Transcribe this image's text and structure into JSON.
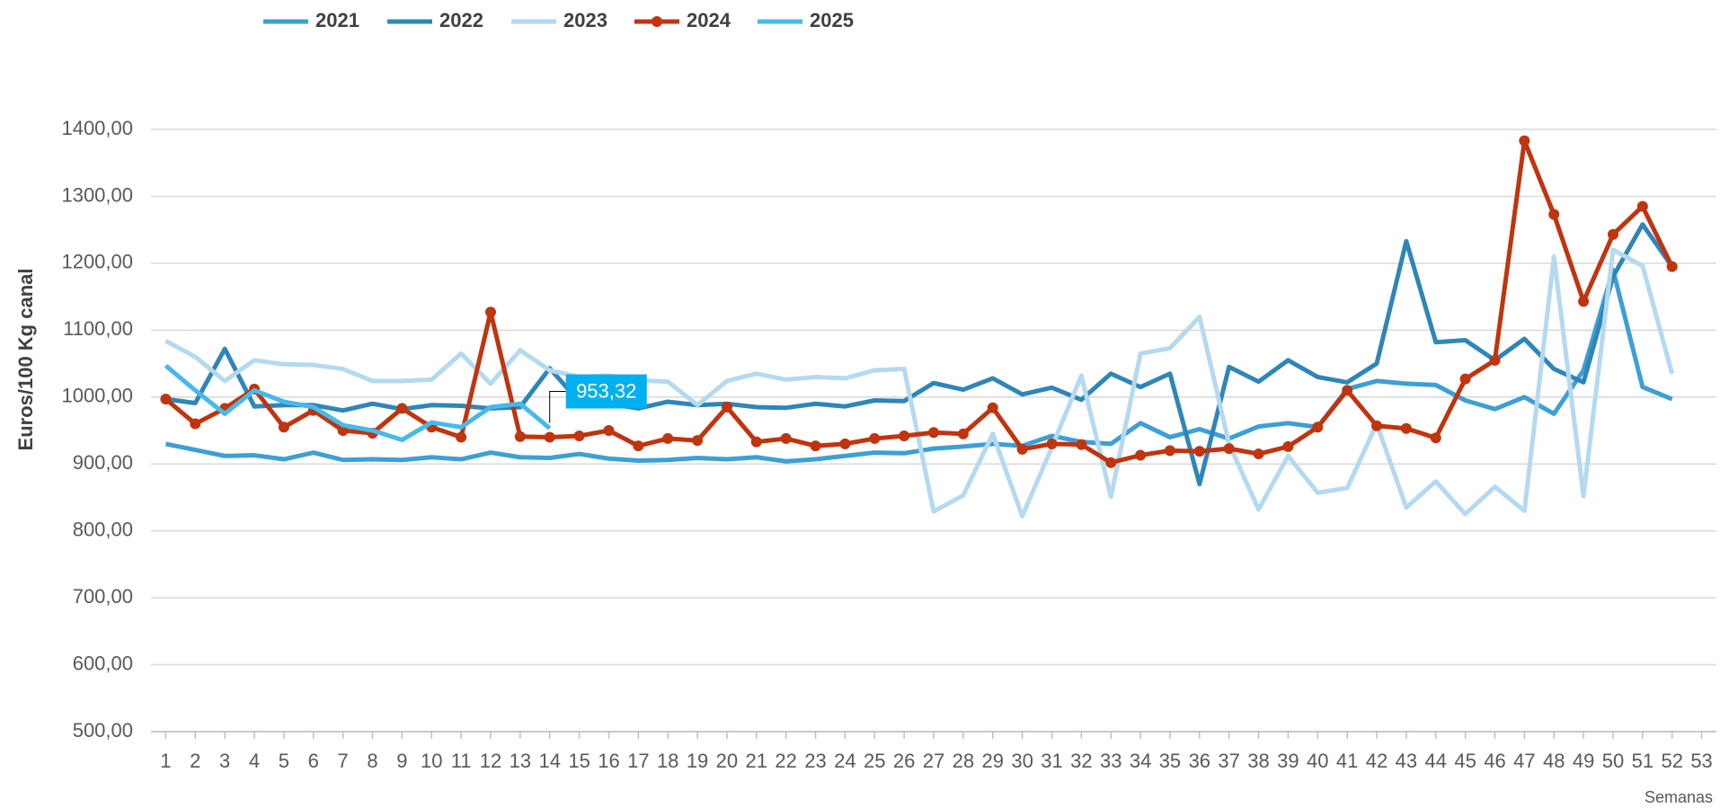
{
  "chart_data": {
    "type": "line",
    "y_label": "Euros/100 Kg canal",
    "x_label": "Semanas",
    "x": [
      1,
      2,
      3,
      4,
      5,
      6,
      7,
      8,
      9,
      10,
      11,
      12,
      13,
      14,
      15,
      16,
      17,
      18,
      19,
      20,
      21,
      22,
      23,
      24,
      25,
      26,
      27,
      28,
      29,
      30,
      31,
      32,
      33,
      34,
      35,
      36,
      37,
      38,
      39,
      40,
      41,
      42,
      43,
      44,
      45,
      46,
      47,
      48,
      49,
      50,
      51,
      52
    ],
    "xlim": [
      0.5,
      53.5
    ],
    "xticks": [
      1,
      2,
      3,
      4,
      5,
      6,
      7,
      8,
      9,
      10,
      11,
      12,
      13,
      14,
      15,
      16,
      17,
      18,
      19,
      20,
      21,
      22,
      23,
      24,
      25,
      26,
      27,
      28,
      29,
      30,
      31,
      32,
      33,
      34,
      35,
      36,
      37,
      38,
      39,
      40,
      41,
      42,
      43,
      44,
      45,
      46,
      47,
      48,
      49,
      50,
      51,
      52,
      53
    ],
    "ylim": [
      500,
      1400
    ],
    "yticks": [
      {
        "value": 500,
        "label": "500,00"
      },
      {
        "value": 600,
        "label": "600,00"
      },
      {
        "value": 700,
        "label": "700,00"
      },
      {
        "value": 800,
        "label": "800,00"
      },
      {
        "value": 900,
        "label": "900,00"
      },
      {
        "value": 1000,
        "label": "1000,00"
      },
      {
        "value": 1100,
        "label": "1100,00"
      },
      {
        "value": 1200,
        "label": "1200,00"
      },
      {
        "value": 1300,
        "label": "1300,00"
      },
      {
        "value": 1400,
        "label": "1400,00"
      }
    ],
    "grid": true,
    "legend": "top",
    "series": [
      {
        "name": "2021",
        "color": "#3d9fd4",
        "markers": false,
        "values": [
          930,
          921,
          912,
          913,
          907,
          917,
          906,
          907,
          906,
          910,
          907,
          917,
          910,
          909,
          915,
          908,
          905,
          906,
          909,
          907,
          910,
          904,
          907,
          912,
          917,
          916,
          923,
          926,
          930,
          927,
          942,
          933,
          930,
          961,
          940,
          952,
          938,
          956,
          961,
          955,
          1012,
          1024,
          1020,
          1018,
          995,
          982,
          1000,
          975,
          1040,
          1190,
          1015,
          997
        ]
      },
      {
        "name": "2022",
        "color": "#2e86b8",
        "markers": false,
        "values": [
          997,
          991,
          1072,
          986,
          988,
          988,
          980,
          990,
          982,
          988,
          987,
          983,
          985,
          1043,
          993,
          990,
          983,
          993,
          988,
          990,
          985,
          984,
          990,
          986,
          995,
          994,
          1021,
          1011,
          1028,
          1004,
          1014,
          996,
          1035,
          1015,
          1035,
          870,
          1045,
          1023,
          1055,
          1030,
          1022,
          1050,
          1233,
          1082,
          1085,
          1055,
          1087,
          1042,
          1022,
          1180,
          1258,
          1195
        ]
      },
      {
        "name": "2023",
        "color": "#b4d9f0",
        "markers": false,
        "values": [
          1084,
          1060,
          1024,
          1055,
          1049,
          1048,
          1042,
          1024,
          1024,
          1026,
          1065,
          1020,
          1070,
          1040,
          1030,
          1032,
          1025,
          1023,
          988,
          1024,
          1035,
          1026,
          1030,
          1028,
          1040,
          1042,
          829,
          853,
          945,
          822,
          925,
          1032,
          851,
          1065,
          1073,
          1120,
          930,
          832,
          912,
          857,
          864,
          960,
          835,
          874,
          825,
          866,
          830,
          1210,
          852,
          1220,
          1196,
          1035
        ]
      },
      {
        "name": "2024",
        "color": "#c0340e",
        "markers": true,
        "values": [
          997,
          960,
          983,
          1012,
          955,
          980,
          950,
          946,
          983,
          955,
          940,
          1127,
          941,
          940,
          942,
          950,
          927,
          938,
          935,
          985,
          933,
          938,
          927,
          930,
          938,
          942,
          947,
          945,
          984,
          922,
          930,
          929,
          902,
          913,
          920,
          919,
          923,
          915,
          926,
          955,
          1010,
          957,
          953,
          939,
          1027,
          1055,
          1383,
          1273,
          1143,
          1243,
          1285,
          1195
        ]
      },
      {
        "name": "2025",
        "color": "#47b9ea",
        "markers": false,
        "values": [
          1047,
          1010,
          975,
          1010,
          993,
          985,
          958,
          950,
          936,
          962,
          955,
          985,
          990,
          953.32,
          null,
          null,
          null,
          null,
          null,
          null,
          null,
          null,
          null,
          null,
          null,
          null,
          null,
          null,
          null,
          null,
          null,
          null,
          null,
          null,
          null,
          null,
          null,
          null,
          null,
          null,
          null,
          null,
          null,
          null,
          null,
          null,
          null,
          null,
          null,
          null,
          null,
          null
        ],
        "value_labels": [
          null,
          null,
          null,
          null,
          null,
          null,
          null,
          null,
          null,
          null,
          null,
          null,
          null,
          "953,32",
          null,
          null,
          null,
          null,
          null,
          null,
          null,
          null,
          null,
          null,
          null,
          null,
          null,
          null,
          null,
          null,
          null,
          null,
          null,
          null,
          null,
          null,
          null,
          null,
          null,
          null,
          null,
          null,
          null,
          null,
          null,
          null,
          null,
          null,
          null,
          null,
          null,
          null
        ]
      }
    ]
  }
}
